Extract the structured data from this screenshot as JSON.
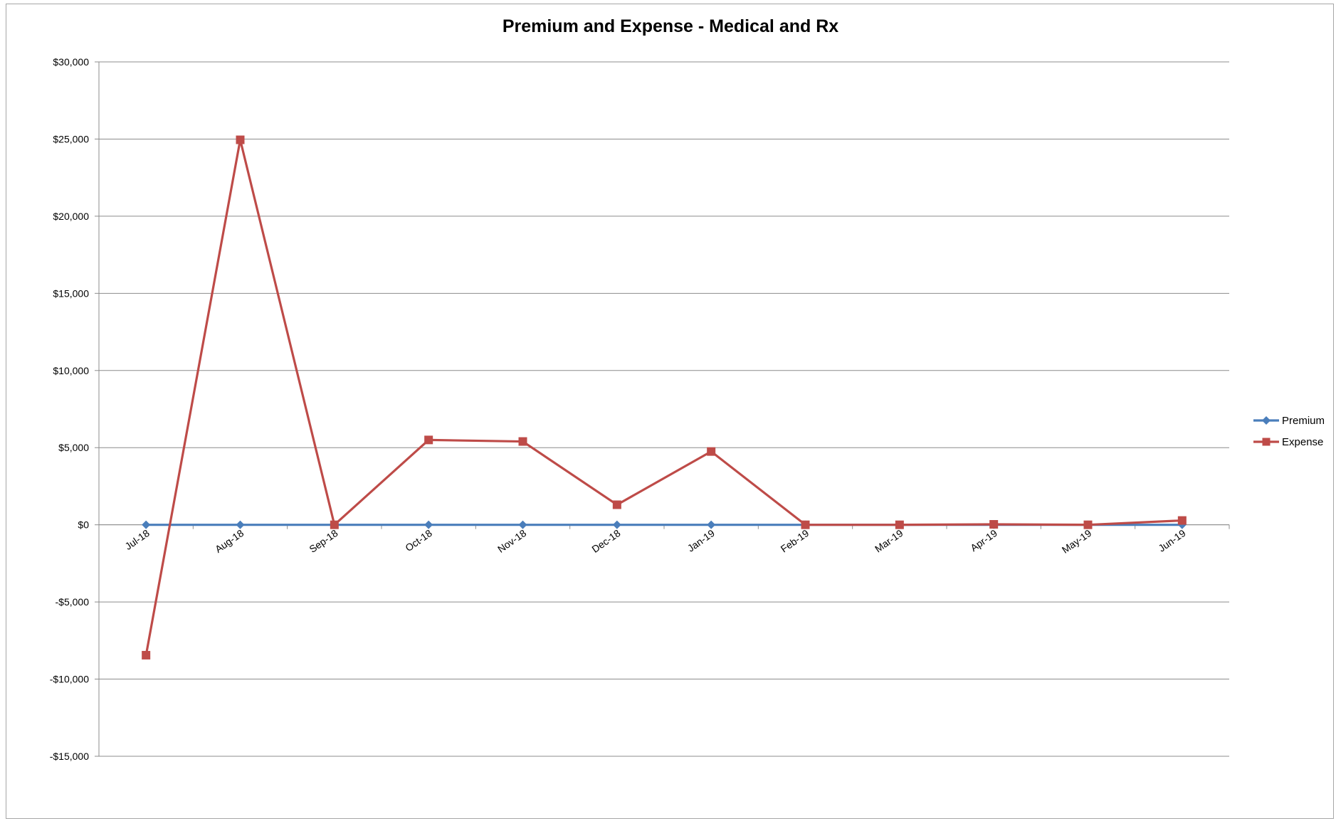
{
  "chart_data": {
    "type": "line",
    "title": "Premium and Expense - Medical and Rx",
    "xlabel": "",
    "ylabel": "",
    "categories": [
      "Jul-18",
      "Aug-18",
      "Sep-18",
      "Oct-18",
      "Nov-18",
      "Dec-18",
      "Jan-19",
      "Feb-19",
      "Mar-19",
      "Apr-19",
      "May-19",
      "Jun-19"
    ],
    "ylim": [
      -15000,
      30000
    ],
    "yticks": [
      30000,
      25000,
      20000,
      15000,
      10000,
      5000,
      0,
      -5000,
      -10000,
      -15000
    ],
    "ytick_labels": [
      "$30,000",
      "$25,000",
      "$20,000",
      "$15,000",
      "$10,000",
      "$5,000",
      "$0",
      "-$5,000",
      "-$10,000",
      "-$15,000"
    ],
    "grid": true,
    "legend_position": "right",
    "series": [
      {
        "name": "Premium",
        "color": "#4a7ebb",
        "marker": "diamond",
        "values": [
          0,
          0,
          0,
          0,
          0,
          0,
          0,
          0,
          0,
          0,
          0,
          0
        ]
      },
      {
        "name": "Expense",
        "color": "#be4b48",
        "marker": "square",
        "values": [
          -8450,
          24950,
          0,
          5500,
          5400,
          1300,
          4750,
          0,
          0,
          30,
          0,
          280
        ]
      }
    ]
  }
}
